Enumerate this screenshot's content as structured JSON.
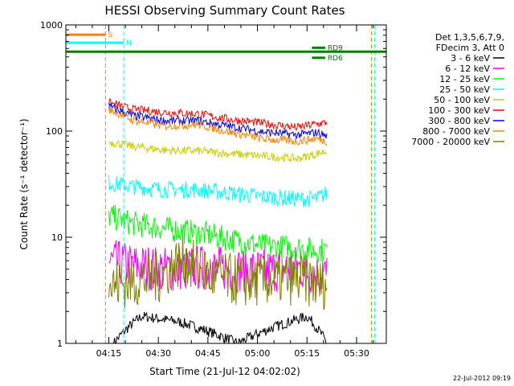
{
  "chart_data": {
    "type": "line",
    "title": "HESSI Observing Summary Count Rates",
    "xlabel": "Start Time (21-Jul-12 04:02:02)",
    "ylabel": "Count Rate (s⁻¹ detector⁻¹)",
    "yscale": "log",
    "ylim": [
      1,
      1000
    ],
    "xlim_minutes": [
      0,
      97
    ],
    "x_ticks": [
      {
        "minute": 13,
        "label": "04:15"
      },
      {
        "minute": 28,
        "label": "04:30"
      },
      {
        "minute": 43,
        "label": "04:45"
      },
      {
        "minute": 58,
        "label": "05:00"
      },
      {
        "minute": 73,
        "label": "05:15"
      },
      {
        "minute": 88,
        "label": "05:30"
      }
    ],
    "y_ticks": [
      {
        "value": 1,
        "label": "1"
      },
      {
        "value": 10,
        "label": "10"
      },
      {
        "value": 100,
        "label": "100"
      },
      {
        "value": 1000,
        "label": "1000"
      }
    ],
    "legend_position": "top-right",
    "legend_header": [
      "Det 1,3,5,6,7,9,",
      "FDecim 3, Att 0"
    ],
    "series": [
      {
        "name": "3 - 6 keV",
        "color": "#000000",
        "x": [
          14.5,
          23,
          34,
          52,
          73,
          79
        ],
        "y": [
          1,
          1.8,
          1.6,
          1,
          1.8,
          1
        ]
      },
      {
        "name": "6 - 12 keV",
        "color": "#ff00ff",
        "x": [
          13,
          20,
          30,
          40,
          50,
          60,
          70,
          76,
          79
        ],
        "y": [
          5.8,
          5.4,
          5.0,
          5.2,
          5.0,
          4.8,
          5.2,
          4.5,
          4.4
        ]
      },
      {
        "name": "12 - 25 keV",
        "color": "#00ff00",
        "x": [
          13,
          20,
          30,
          40,
          50,
          60,
          70,
          76,
          79
        ],
        "y": [
          16,
          13.5,
          12,
          11,
          9.5,
          8.2,
          8.0,
          7.5,
          7.7
        ]
      },
      {
        "name": "25 - 50 keV",
        "color": "#00ffff",
        "x": [
          13,
          20,
          30,
          40,
          50,
          60,
          70,
          76,
          79
        ],
        "y": [
          33,
          30,
          28,
          28,
          26,
          24,
          23,
          23,
          26
        ]
      },
      {
        "name": "50 - 100 keV",
        "color": "#cccc00",
        "x": [
          13,
          20,
          30,
          40,
          50,
          60,
          70,
          76,
          79
        ],
        "y": [
          79,
          72,
          66,
          65,
          61,
          58,
          55,
          61,
          65
        ]
      },
      {
        "name": "100 - 300 keV",
        "color": "#ff0000",
        "x": [
          13,
          20,
          30,
          40,
          50,
          60,
          70,
          76,
          79
        ],
        "y": [
          185,
          160,
          150,
          145,
          128,
          118,
          108,
          117,
          120
        ]
      },
      {
        "name": "300 - 800 keV",
        "color": "#0000ff",
        "x": [
          13,
          20,
          30,
          40,
          50,
          60,
          70,
          76,
          79
        ],
        "y": [
          170,
          140,
          125,
          125,
          110,
          98,
          92,
          97,
          90
        ]
      },
      {
        "name": "800 - 7000 keV",
        "color": "#ff8000",
        "x": [
          13,
          20,
          30,
          40,
          50,
          60,
          70,
          76,
          79
        ],
        "y": [
          160,
          127,
          112,
          115,
          97,
          84,
          80,
          85,
          80
        ]
      },
      {
        "name": "7000 - 20000 keV",
        "color": "#808000",
        "x": [
          13,
          20,
          28,
          35,
          45,
          55,
          65,
          72,
          76,
          79
        ],
        "y": [
          3.5,
          3.8,
          4.2,
          6.0,
          4.2,
          3.8,
          4.0,
          4.0,
          3.6,
          3.7
        ]
      }
    ],
    "status_bars": [
      {
        "label": "S",
        "color": "#ff8000",
        "from_minute": 0,
        "to_minute": 12,
        "level": 810
      },
      {
        "label": "N",
        "color": "#00ffff",
        "from_minute": 0,
        "to_minute": 17.5,
        "level": 680
      },
      {
        "label": "",
        "color": "#008000",
        "from_minute": 0,
        "to_minute": 97,
        "level": 560
      },
      {
        "label": "RD6",
        "color": "#008000",
        "from_minute": 74.5,
        "to_minute": 78.5,
        "level": 490
      },
      {
        "label": "RD9",
        "color": "#008000",
        "from_minute": 74.5,
        "to_minute": 78.5,
        "level": 610
      }
    ],
    "vertical_markers": [
      {
        "color": "#ff8000",
        "style": "dashed",
        "minute": 12
      },
      {
        "color": "#00ffff",
        "style": "dashed",
        "minute": 17.5
      },
      {
        "color": "#ff8000",
        "style": "dashed",
        "minute": 92.5
      },
      {
        "color": "#00ffff",
        "style": "dashed",
        "minute": 93.5
      }
    ]
  },
  "footer": {
    "date_stamp": "22-Jul-2012 09:19"
  }
}
